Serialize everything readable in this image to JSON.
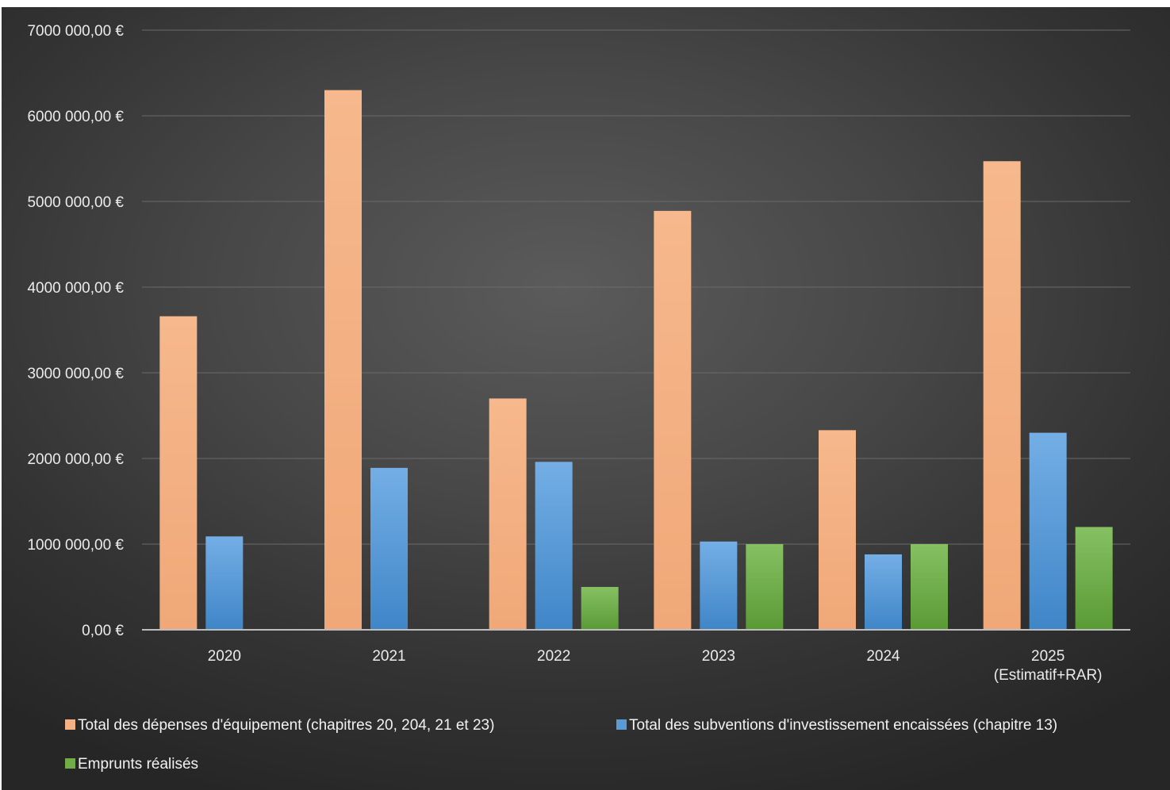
{
  "chart_data": {
    "type": "bar",
    "title": "",
    "xlabel": "",
    "ylabel": "",
    "ylim": [
      0,
      7000000
    ],
    "y_ticks": [
      0,
      1000000,
      2000000,
      3000000,
      4000000,
      5000000,
      6000000,
      7000000
    ],
    "y_tick_labels": [
      "0,00 €",
      "1000 000,00 €",
      "2000 000,00 €",
      "3000 000,00 €",
      "4000 000,00 €",
      "5000 000,00 €",
      "6000 000,00 €",
      "7000 000,00 €"
    ],
    "categories": [
      "2020",
      "2021",
      "2022",
      "2023",
      "2024",
      "2025 (Estimatif+RAR)"
    ],
    "category_label_lines": [
      [
        "2020"
      ],
      [
        "2021"
      ],
      [
        "2022"
      ],
      [
        "2023"
      ],
      [
        "2024"
      ],
      [
        "2025",
        "(Estimatif+RAR)"
      ]
    ],
    "grid": true,
    "legend_position": "bottom",
    "series": [
      {
        "name": "Total des dépenses d'équipement (chapitres 20, 204, 21 et 23)",
        "color": "#f4b183",
        "values": [
          3660000,
          6300000,
          2700000,
          4890000,
          2330000,
          5470000
        ]
      },
      {
        "name": "Total des subventions d'investissement encaissées (chapitre 13)",
        "color": "#5b9bd5",
        "values": [
          1090000,
          1890000,
          1960000,
          1030000,
          880000,
          2300000
        ]
      },
      {
        "name": "Emprunts réalisés",
        "color": "#70ad47",
        "values": [
          0,
          0,
          500000,
          1000000,
          1000000,
          1200000
        ]
      }
    ]
  }
}
